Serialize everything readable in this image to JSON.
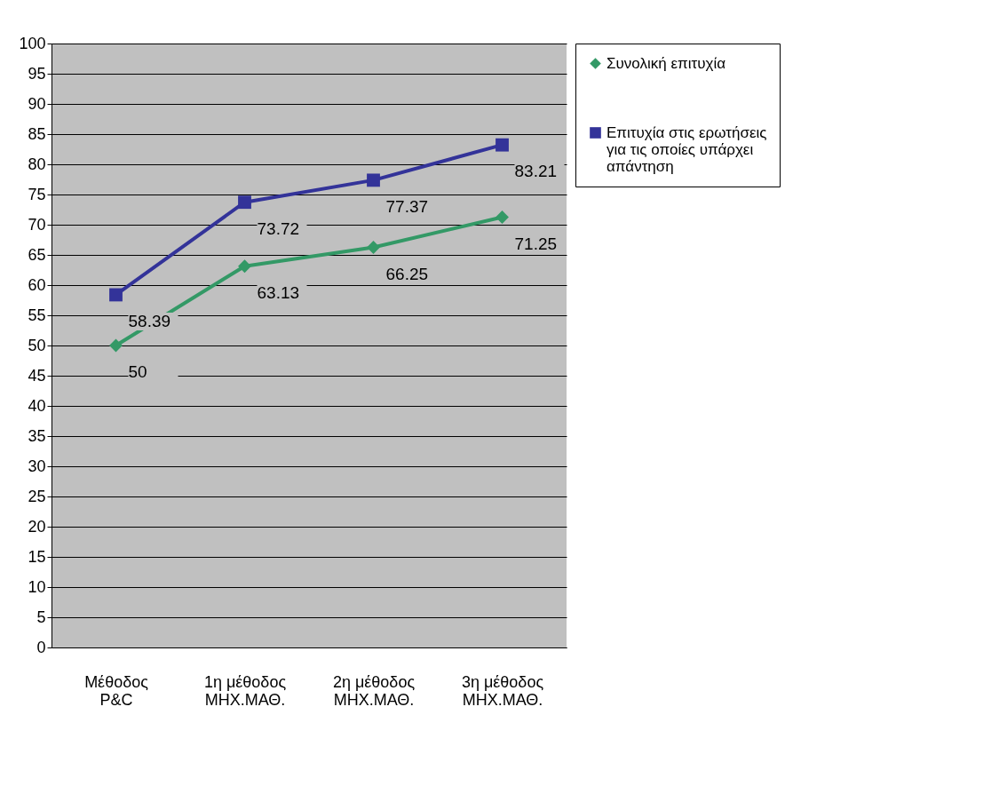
{
  "chart_data": {
    "type": "line",
    "categories": [
      "Μέθοδος P&C",
      "1η μέθοδος ΜΗΧ.ΜΑΘ.",
      "2η μέθοδος ΜΗΧ.ΜΑΘ.",
      "3η μέθοδος ΜΗΧ.ΜΑΘ."
    ],
    "series": [
      {
        "name": "Συνολική επιτυχία",
        "color": "#339966",
        "marker": "diamond",
        "values": [
          50,
          63.13,
          66.25,
          71.25
        ]
      },
      {
        "name": "Επιτυχία στις ερωτήσεις για τις οποίες υπάρχει απάντηση",
        "color": "#333399",
        "marker": "square",
        "values": [
          58.39,
          73.72,
          77.37,
          83.21
        ]
      }
    ],
    "ylim": [
      0,
      100
    ],
    "yticks": [
      0,
      5,
      10,
      15,
      20,
      25,
      30,
      35,
      40,
      45,
      50,
      55,
      60,
      65,
      70,
      75,
      80,
      85,
      90,
      95,
      100
    ],
    "grid": "y",
    "legend": "right",
    "data_labels": true,
    "line_style": "solid"
  }
}
